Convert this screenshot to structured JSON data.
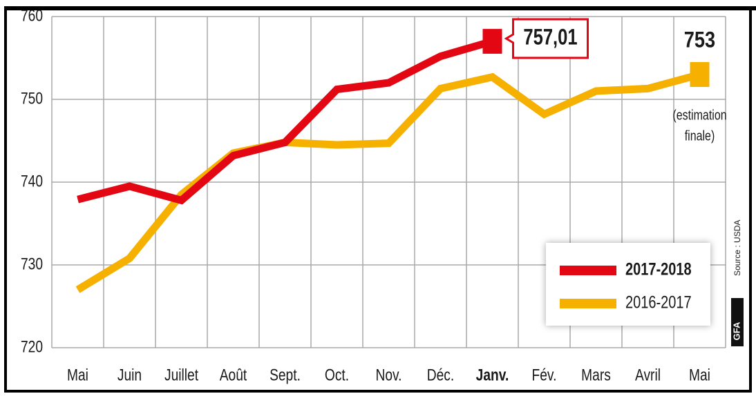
{
  "chart_data": {
    "type": "line",
    "categories": [
      "Mai",
      "Juin",
      "Juillet",
      "Août",
      "Sept.",
      "Oct.",
      "Nov.",
      "Déc.",
      "Janv.",
      "Fév.",
      "Mars",
      "Avril",
      "Mai"
    ],
    "series": [
      {
        "name": "2017-2018",
        "color": "#e30613",
        "values": [
          737.9,
          739.5,
          737.8,
          743.2,
          744.8,
          751.2,
          752,
          755.2,
          757.01,
          null,
          null,
          null,
          null
        ],
        "value_labels": [
          null,
          null,
          null,
          null,
          null,
          null,
          null,
          null,
          "757,01",
          null,
          null,
          null,
          null
        ]
      },
      {
        "name": "2016-2017",
        "color": "#f5b000",
        "values": [
          727,
          730.8,
          738.5,
          743.5,
          744.8,
          744.5,
          744.7,
          751.3,
          752.7,
          748.2,
          751,
          751.3,
          753
        ]
      }
    ],
    "ylim": [
      720,
      760
    ],
    "yticks": [
      720,
      730,
      740,
      750,
      760
    ],
    "grid": true,
    "annotation": [
      "(estimation",
      "finale)"
    ],
    "source": "Source : USDA",
    "logo": "GFA"
  }
}
